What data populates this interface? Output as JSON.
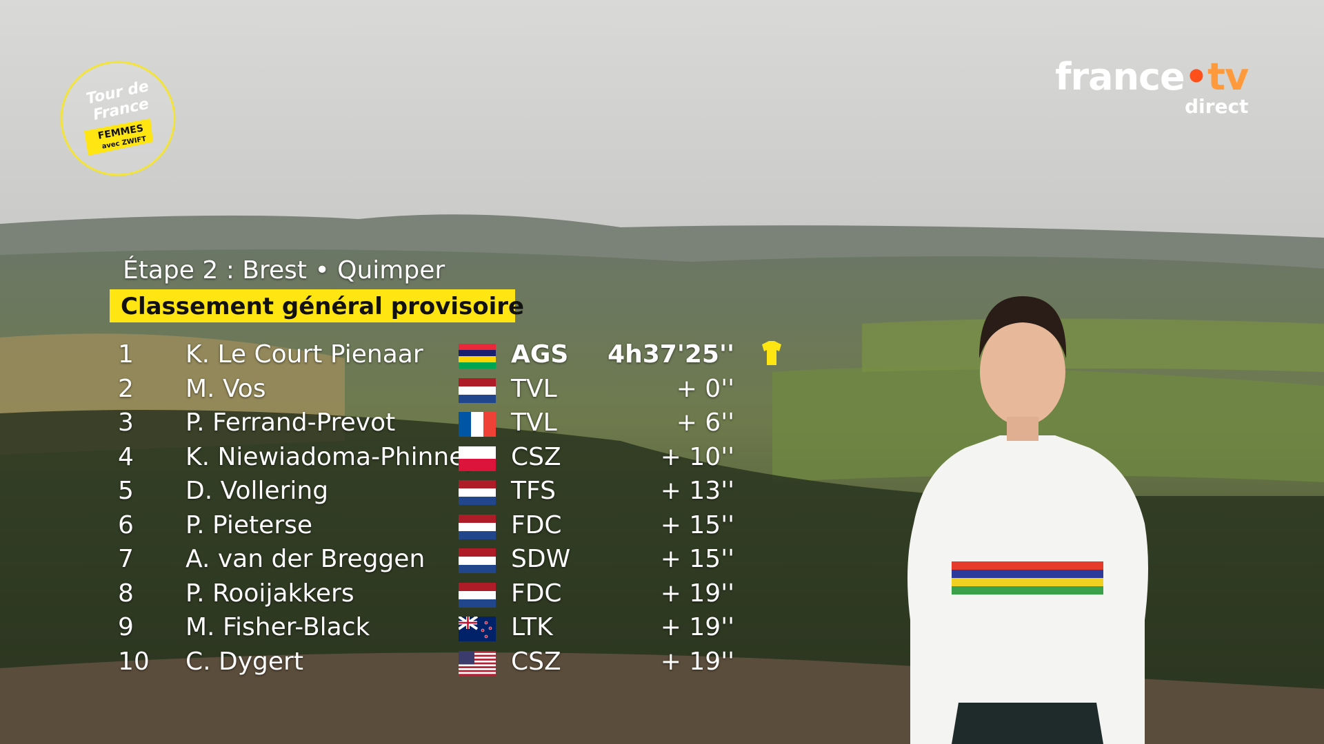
{
  "race_logo": {
    "title": "Tour de France",
    "subtitle": "FEMMES",
    "sponsor": "avec ZWIFT"
  },
  "broadcaster": {
    "brand": "france",
    "brand_suffix": "tv",
    "label": "direct"
  },
  "standings": {
    "stage": "Étape 2 : Brest • Quimper",
    "title": "Classement général provisoire",
    "rows": [
      {
        "rank": 1,
        "name": "K. Le Court Pienaar",
        "team": "AGS",
        "time": "4h37'25''"
      },
      {
        "rank": 2,
        "name": "M. Vos",
        "team": "TVL",
        "time": "+ 0''"
      },
      {
        "rank": 3,
        "name": "P. Ferrand-Prevot",
        "team": "TVL",
        "time": "+ 6''"
      },
      {
        "rank": 4,
        "name": "K. Niewiadoma-Phinney",
        "team": "CSZ",
        "time": "+ 10''"
      },
      {
        "rank": 5,
        "name": "D. Vollering",
        "team": "TFS",
        "time": "+ 13''"
      },
      {
        "rank": 6,
        "name": "P. Pieterse",
        "team": "FDC",
        "time": "+ 15''"
      },
      {
        "rank": 7,
        "name": "A. van der Breggen",
        "team": "SDW",
        "time": "+ 15''"
      },
      {
        "rank": 8,
        "name": "P. Rooijakkers",
        "team": "FDC",
        "time": "+ 19''"
      },
      {
        "rank": 9,
        "name": "M. Fisher-Black",
        "team": "LTK",
        "time": "+ 19''"
      },
      {
        "rank": 10,
        "name": "C. Dygert",
        "team": "CSZ",
        "time": "+ 19''"
      }
    ]
  }
}
